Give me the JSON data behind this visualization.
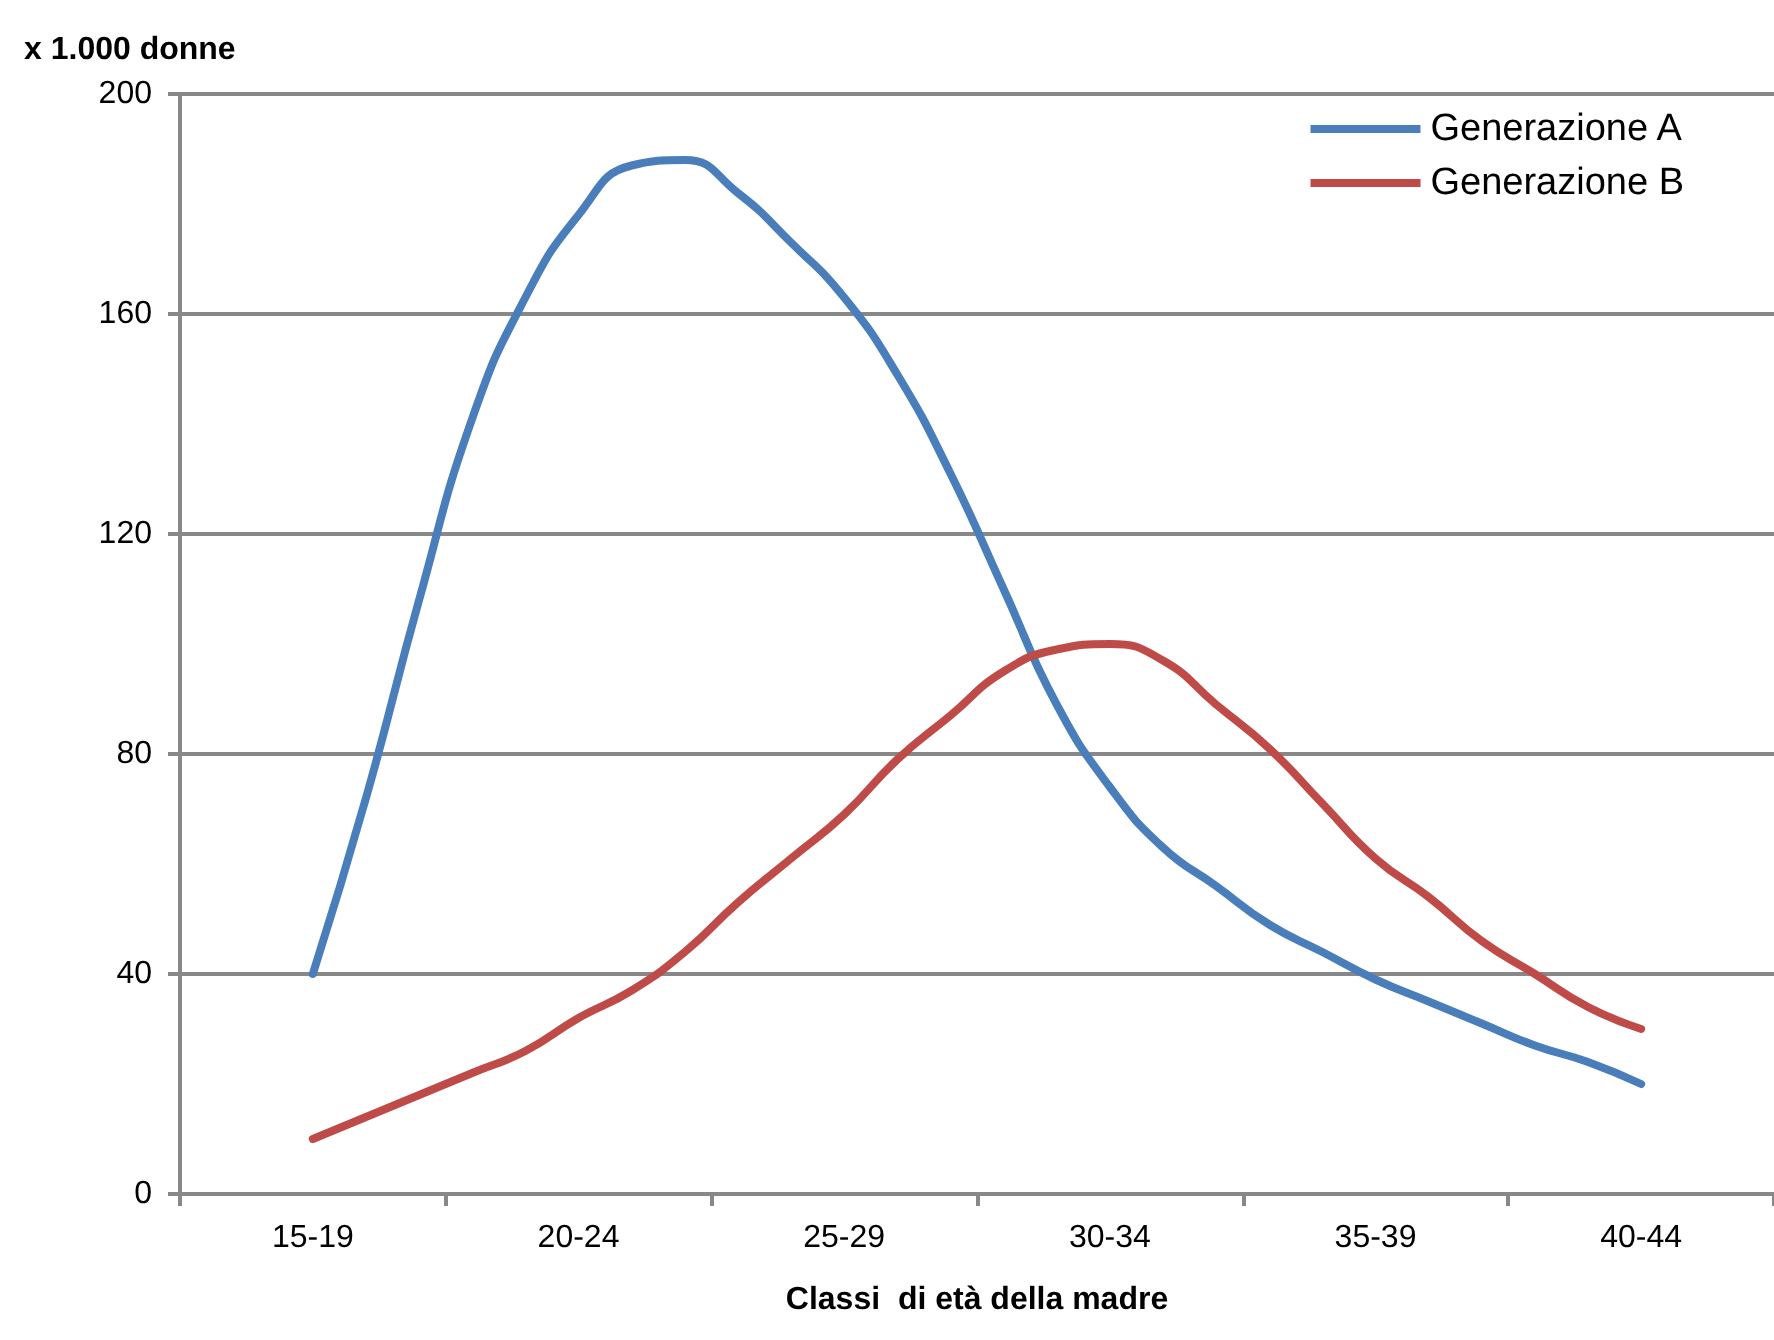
{
  "chart_data": {
    "type": "line",
    "ylabel": "x 1.000 donne",
    "xlabel": "Classi  di età della madre",
    "categories": [
      null,
      null,
      "15-19",
      null,
      null,
      null,
      null,
      "20-24",
      null,
      null,
      null,
      null,
      "25-29",
      null,
      null,
      null,
      null,
      "30-34",
      null,
      null,
      null,
      null,
      "35-39",
      null,
      null,
      null,
      null,
      "40-44",
      null,
      null
    ],
    "ylim": [
      0,
      200
    ],
    "yticks": [
      0,
      40,
      80,
      120,
      160,
      200
    ],
    "grid": "y",
    "legend": "top right",
    "marker": "none",
    "line_style": "solid",
    "series": [
      {
        "name": "Generazione A",
        "color": "#4a7ebb",
        "values": [
          null,
          null,
          40,
          72,
          108,
          141,
          163,
          178,
          187,
          188,
          182,
          173,
          163,
          149,
          131,
          110,
          89,
          74,
          63,
          56,
          49,
          44,
          39,
          35,
          31,
          27,
          24,
          20,
          null,
          null
        ]
      },
      {
        "name": "Generazione B",
        "color": "#be4b48",
        "values": [
          null,
          null,
          10,
          14,
          18,
          22,
          26,
          32,
          37,
          44,
          53,
          61,
          69,
          79,
          87,
          95,
          99,
          100,
          97,
          89,
          81,
          71,
          61,
          54,
          46,
          40,
          34,
          30,
          null,
          null
        ]
      }
    ]
  }
}
